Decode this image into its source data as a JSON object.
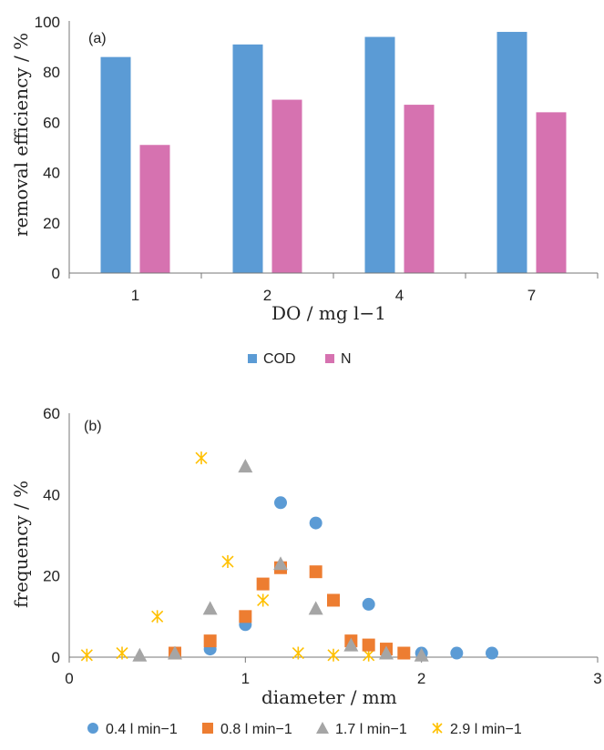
{
  "chart_data": [
    {
      "panel_label": "(a)",
      "type": "bar",
      "categories": [
        "1",
        "2",
        "4",
        "7"
      ],
      "series": [
        {
          "name": "COD",
          "color": "#5b9bd5",
          "values": [
            86,
            91,
            94,
            96
          ]
        },
        {
          "name": "N",
          "color": "#d672b0",
          "values": [
            51,
            69,
            67,
            64
          ]
        }
      ],
      "xlabel": "DO / mg l−1",
      "ylabel": "removal efficiency / %",
      "ylim": [
        0,
        100
      ],
      "yticks": [
        "0",
        "20",
        "40",
        "60",
        "80",
        "100"
      ],
      "grid": false,
      "legend": "bottom"
    },
    {
      "panel_label": "(b)",
      "type": "scatter",
      "xlabel": "diameter / mm",
      "ylabel": "frequency / %",
      "xlim": [
        0,
        3
      ],
      "ylim": [
        0,
        60
      ],
      "xticks": [
        "0",
        "1",
        "2",
        "3"
      ],
      "yticks": [
        "0",
        "20",
        "40",
        "60"
      ],
      "grid": false,
      "legend": "bottom",
      "series": [
        {
          "name": "0.4 l min−1",
          "marker": "circle",
          "color": "#5b9bd5",
          "points": [
            [
              0.6,
              1
            ],
            [
              0.8,
              2
            ],
            [
              1.0,
              8
            ],
            [
              1.2,
              38
            ],
            [
              1.4,
              33
            ],
            [
              1.7,
              13
            ],
            [
              2.0,
              1
            ],
            [
              2.2,
              1
            ],
            [
              2.4,
              1
            ]
          ]
        },
        {
          "name": "0.8 l min−1",
          "marker": "square",
          "color": "#ed7d31",
          "points": [
            [
              0.6,
              1
            ],
            [
              0.8,
              4
            ],
            [
              1.0,
              10
            ],
            [
              1.1,
              18
            ],
            [
              1.2,
              22
            ],
            [
              1.4,
              21
            ],
            [
              1.5,
              14
            ],
            [
              1.6,
              4
            ],
            [
              1.7,
              3
            ],
            [
              1.8,
              2
            ],
            [
              1.9,
              1
            ]
          ]
        },
        {
          "name": "1.7 l min−1",
          "marker": "triangle",
          "color": "#a5a5a5",
          "points": [
            [
              0.4,
              0.5
            ],
            [
              0.6,
              1
            ],
            [
              0.8,
              12
            ],
            [
              1.0,
              47
            ],
            [
              1.2,
              23
            ],
            [
              1.4,
              12
            ],
            [
              1.6,
              3
            ],
            [
              1.8,
              1
            ],
            [
              2.0,
              0.5
            ]
          ]
        },
        {
          "name": "2.9 l min−1",
          "marker": "star",
          "color": "#ffc000",
          "points": [
            [
              0.1,
              0.5
            ],
            [
              0.3,
              1
            ],
            [
              0.5,
              10
            ],
            [
              0.75,
              49
            ],
            [
              0.9,
              23.5
            ],
            [
              1.1,
              14
            ],
            [
              1.3,
              1
            ],
            [
              1.5,
              0.5
            ],
            [
              1.7,
              0.5
            ]
          ]
        }
      ]
    }
  ]
}
